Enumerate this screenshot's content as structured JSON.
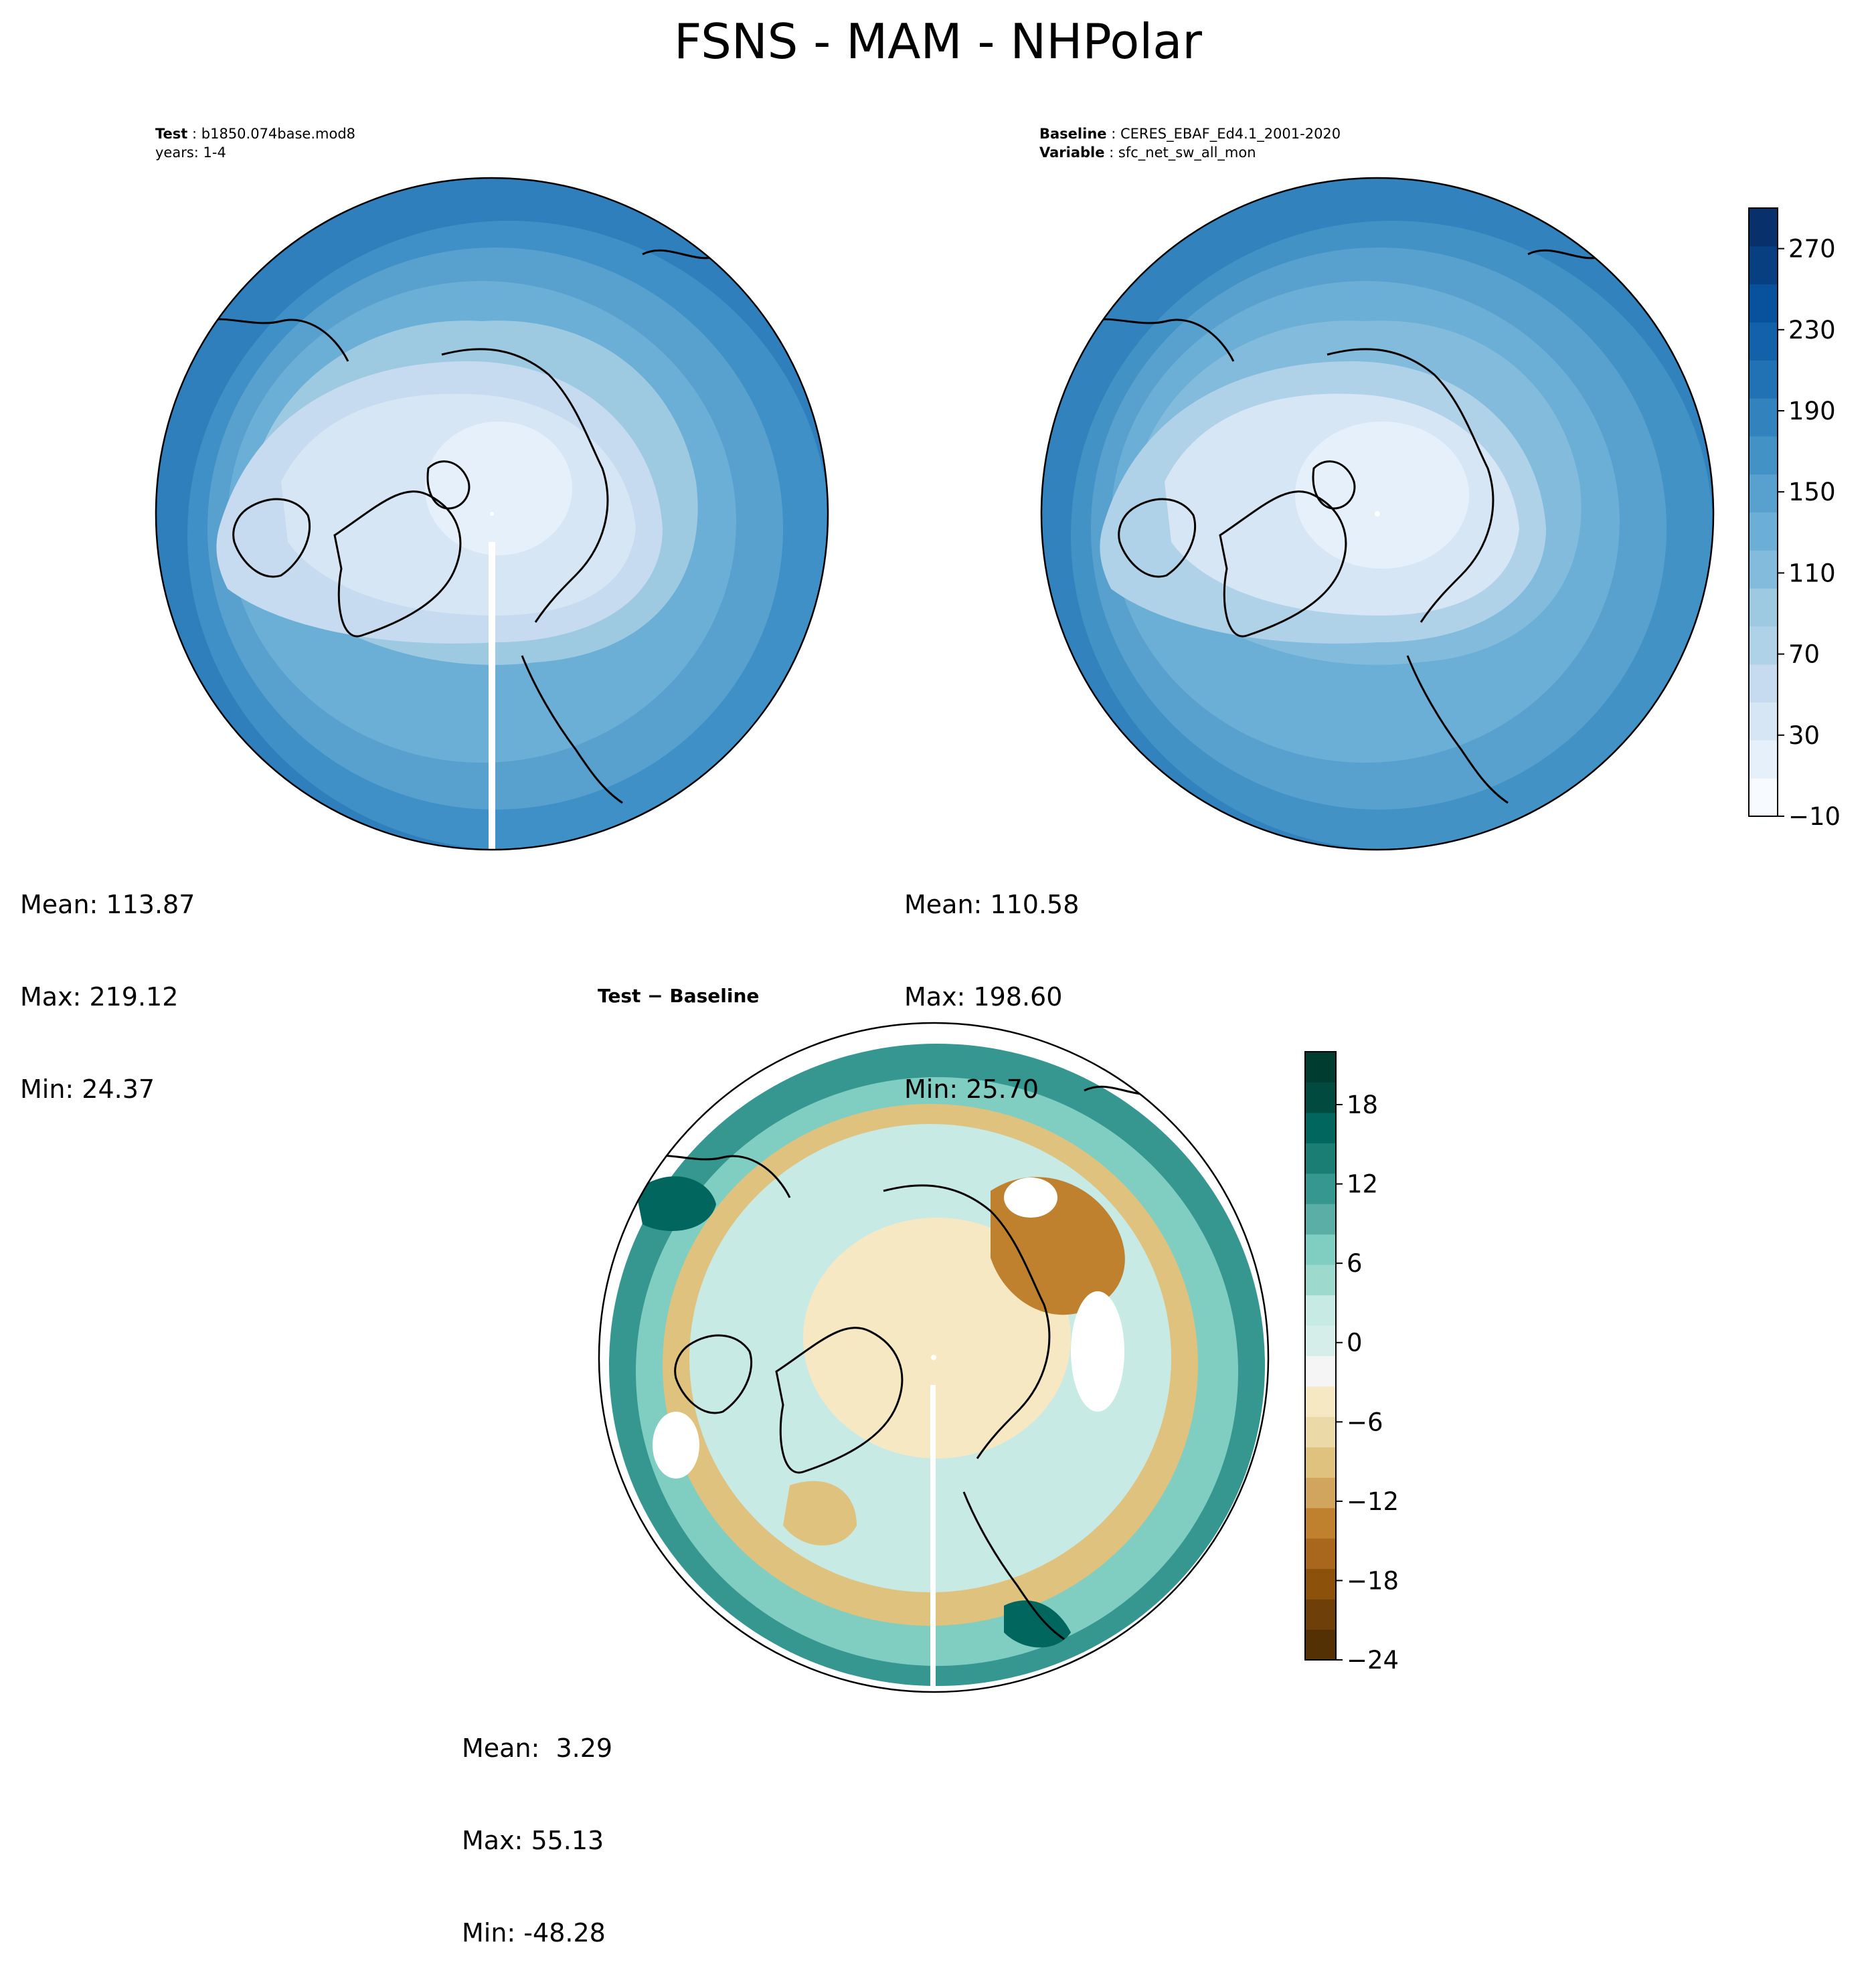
{
  "page_title": "FSNS - MAM - NHPolar",
  "panels": {
    "test": {
      "label_bold": "Test",
      "label_text": "b1850.074base.mod8",
      "years": "years: 1-4",
      "mean": "Mean: 113.87",
      "max": "Max: 219.12",
      "min": "Min: 24.37"
    },
    "baseline": {
      "label_bold": "Baseline",
      "label_text": "CERES_EBAF_Ed4.1_2001-2020",
      "variable_bold": "Variable",
      "variable_text": "sfc_net_sw_all_mon",
      "mean": "Mean: 110.58",
      "max": "Max: 198.60",
      "min": "Min: 25.70"
    },
    "diff": {
      "header": "Test − Baseline",
      "mean": "Mean:  3.29",
      "max": "Max: 55.13",
      "min": "Min: -48.28"
    }
  },
  "colors": {
    "blues": [
      "#f7fbff",
      "#e6f0fa",
      "#d6e6f4",
      "#c6dbef",
      "#b0d2e8",
      "#9ecae1",
      "#82bbdb",
      "#6baed6",
      "#58a1cf",
      "#4292c6",
      "#3182bd",
      "#2171b5",
      "#1361a9",
      "#08519c",
      "#083f80",
      "#08306b"
    ],
    "brbg": [
      "#543005",
      "#6f3f0a",
      "#8c510a",
      "#a8671c",
      "#bf812d",
      "#d2a55e",
      "#dfc27d",
      "#ecd9a8",
      "#f6e8c3",
      "#f5f5f5",
      "#d6eeea",
      "#c7eae5",
      "#9ed9ce",
      "#80cdc1",
      "#5aaea5",
      "#35978f",
      "#1b7e75",
      "#01665e",
      "#004a40",
      "#003c30"
    ]
  },
  "chart_data": [
    {
      "type": "heatmap",
      "panel": "test",
      "projection": "north polar stereographic",
      "variable": "FSNS",
      "season": "MAM",
      "stats": {
        "mean": 113.87,
        "max": 219.12,
        "min": 24.37
      },
      "colorbar": {
        "ticks": [
          -10,
          30,
          70,
          110,
          150,
          190,
          230,
          270
        ],
        "range": [
          -10,
          290
        ]
      }
    },
    {
      "type": "heatmap",
      "panel": "baseline",
      "projection": "north polar stereographic",
      "variable": "sfc_net_sw_all_mon",
      "season": "MAM",
      "stats": {
        "mean": 110.58,
        "max": 198.6,
        "min": 25.7
      },
      "colorbar": {
        "ticks": [
          -10,
          30,
          70,
          110,
          150,
          190,
          230,
          270
        ],
        "range": [
          -10,
          290
        ]
      }
    },
    {
      "type": "heatmap",
      "panel": "diff",
      "projection": "north polar stereographic",
      "stats": {
        "mean": 3.29,
        "max": 55.13,
        "min": -48.28
      },
      "colorbar": {
        "ticks": [
          -24,
          -18,
          -12,
          -6,
          0,
          6,
          12,
          18
        ],
        "range": [
          -24,
          22
        ]
      }
    }
  ],
  "colorbar_labels": {
    "main": [
      "−10",
      "30",
      "70",
      "110",
      "150",
      "190",
      "230",
      "270"
    ],
    "diff": [
      "−24",
      "−18",
      "−12",
      "−6",
      "0",
      "6",
      "12",
      "18"
    ]
  }
}
